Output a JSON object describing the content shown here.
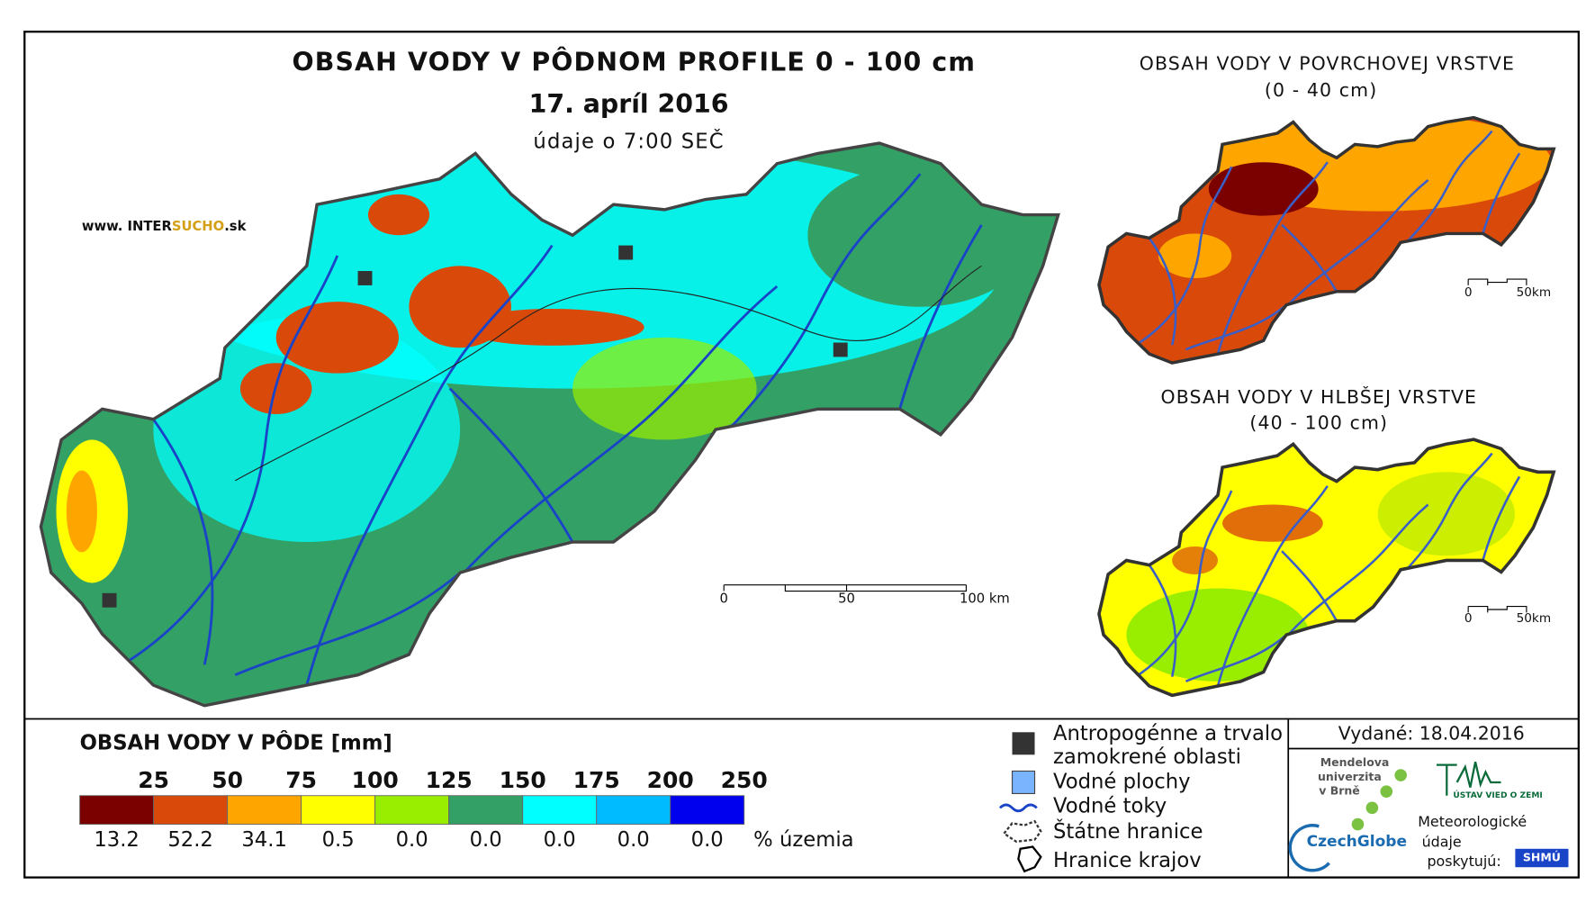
{
  "header": {
    "title": "OBSAH VODY V PÔDNOM PROFILE 0 - 100 cm",
    "date": "17. apríl 2016",
    "time": "údaje o 7:00 SEČ",
    "website": [
      "www. INTER",
      "SUCHO",
      ".sk"
    ]
  },
  "main_map": {
    "scale_labels": [
      "0",
      "50",
      "100 km"
    ]
  },
  "insets": [
    {
      "title": "OBSAH VODY V POVRCHOVEJ VRSTVE",
      "subtitle": "(0 - 40 cm)",
      "scale_labels": [
        "0",
        "50km"
      ]
    },
    {
      "title": "OBSAH VODY V HLBŠEJ VRSTVE",
      "subtitle": "(40 - 100 cm)",
      "scale_labels": [
        "0",
        "50km"
      ]
    }
  ],
  "legend": {
    "title": "OBSAH VODY V PÔDE [mm]",
    "thresholds": [
      25,
      50,
      75,
      100,
      125,
      150,
      175,
      200,
      250
    ],
    "colors": [
      "#7b0000",
      "#d94a0a",
      "#ffa500",
      "#ffff00",
      "#99ee00",
      "#33a066",
      "#00ffff",
      "#00bbff",
      "#0000ee"
    ],
    "percentages": [
      "13.2",
      "52.2",
      "34.1",
      "0.5",
      "0.0",
      "0.0",
      "0.0",
      "0.0",
      "0.0"
    ],
    "unit": "% územia"
  },
  "symbols": [
    {
      "lines": [
        "Antropogénne a trvalo",
        "zamokrené oblasti"
      ]
    },
    {
      "lines": [
        "Vodné plochy"
      ]
    },
    {
      "lines": [
        "Vodné toky"
      ]
    },
    {
      "lines": [
        "Štátne hranice"
      ]
    },
    {
      "lines": [
        "Hranice krajov"
      ]
    }
  ],
  "issued": "Vydané: 18.04.2016",
  "credits": {
    "mendel": [
      "Mendelova",
      "univerzita",
      "v Brně"
    ],
    "czechglobe": "CzechGlobe",
    "ustav": "ÚSTAV VIED O ZEMI",
    "meteo": [
      "Meteorologické",
      "údaje",
      "poskytujú:"
    ],
    "shmu": "SHMÚ"
  }
}
